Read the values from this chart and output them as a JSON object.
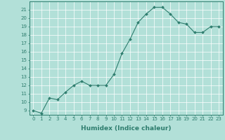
{
  "xlabel": "Humidex (Indice chaleur)",
  "ylabel": "",
  "x_values": [
    0,
    1,
    2,
    3,
    4,
    5,
    6,
    7,
    8,
    9,
    10,
    11,
    12,
    13,
    14,
    15,
    16,
    17,
    18,
    19,
    20,
    21,
    22,
    23
  ],
  "y_values": [
    9.0,
    8.7,
    10.5,
    10.3,
    11.2,
    12.0,
    12.5,
    12.0,
    12.0,
    12.0,
    13.3,
    15.8,
    17.5,
    19.5,
    20.5,
    21.3,
    21.3,
    20.5,
    19.5,
    19.3,
    18.3,
    18.3,
    19.0,
    19.0
  ],
  "line_color": "#2e7d6e",
  "marker": "D",
  "marker_size": 2.0,
  "line_width": 0.8,
  "bg_color": "#b2e0d8",
  "grid_color": "#ffffff",
  "ylim": [
    8.5,
    22.0
  ],
  "xlim": [
    -0.5,
    23.5
  ],
  "yticks": [
    9,
    10,
    11,
    12,
    13,
    14,
    15,
    16,
    17,
    18,
    19,
    20,
    21
  ],
  "xticks": [
    0,
    1,
    2,
    3,
    4,
    5,
    6,
    7,
    8,
    9,
    10,
    11,
    12,
    13,
    14,
    15,
    16,
    17,
    18,
    19,
    20,
    21,
    22,
    23
  ],
  "tick_label_fontsize": 5.0,
  "axis_label_fontsize": 6.5,
  "xlabel_fontweight": "bold"
}
